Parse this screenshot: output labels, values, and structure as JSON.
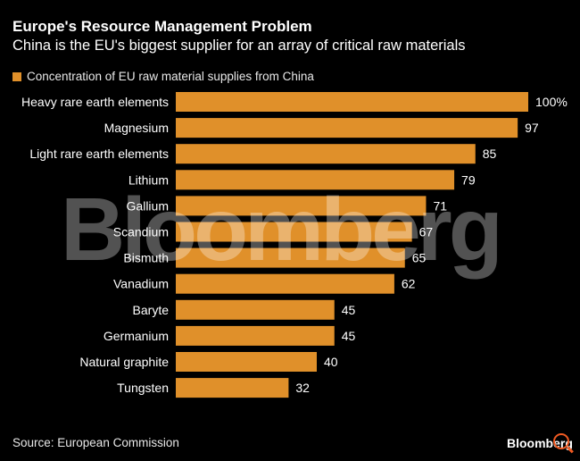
{
  "title": "Europe's Resource Management Problem",
  "subtitle": "China is the EU's biggest supplier for an array of critical raw materials",
  "source": "Source: European Commission",
  "logo": "Bloomberg",
  "watermark": "Bloomberg",
  "chart_data": {
    "type": "bar",
    "orientation": "horizontal",
    "legend": [
      "Concentration of EU raw material supplies from China"
    ],
    "categories": [
      "Heavy rare earth elements",
      "Magnesium",
      "Light rare earth elements",
      "Lithium",
      "Gallium",
      "Scandium",
      "Bismuth",
      "Vanadium",
      "Baryte",
      "Germanium",
      "Natural graphite",
      "Tungsten"
    ],
    "values": [
      100,
      97,
      85,
      79,
      71,
      67,
      65,
      62,
      45,
      45,
      40,
      32
    ],
    "value_labels": [
      "100%",
      "97",
      "85",
      "79",
      "71",
      "67",
      "65",
      "62",
      "45",
      "45",
      "40",
      "32"
    ],
    "xlim": [
      0,
      100
    ],
    "grid": false,
    "color": "#e0902a"
  }
}
